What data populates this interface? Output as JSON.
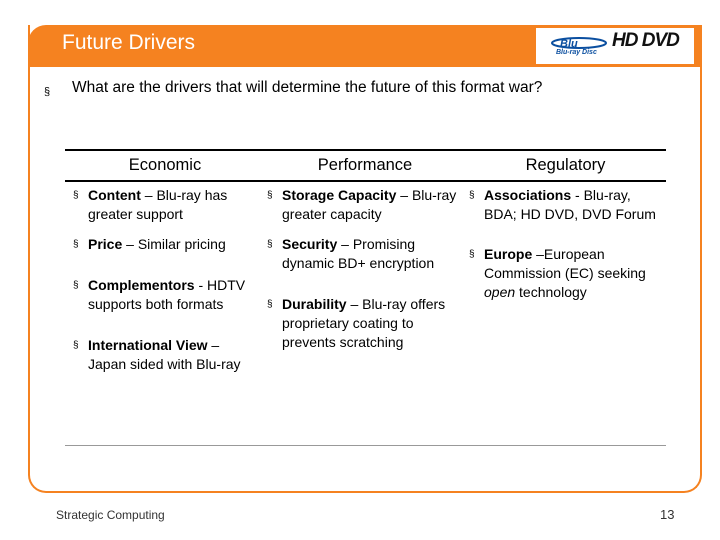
{
  "slide": {
    "title": "Future Drivers",
    "bullet_glyph": "§",
    "question": "What are the drivers that will determine the future of this format war?",
    "logos": {
      "bluray_text": "Blu-ray Disc",
      "hddvd_text": "HD DVD"
    }
  },
  "table": {
    "headers": [
      "Economic",
      "Performance",
      "Regulatory"
    ],
    "economic": [
      {
        "label": "Content",
        "text": " – Blu-ray has greater support"
      },
      {
        "label": "Price",
        "text": " – Similar pricing"
      },
      {
        "label": "Complementors",
        "text": " - HDTV supports both formats"
      },
      {
        "label": "International View",
        "text": " – Japan sided with Blu-ray"
      }
    ],
    "performance": [
      {
        "label": "Storage Capacity",
        "text": " – Blu-ray greater capacity"
      },
      {
        "label": "Security",
        "text": " – Promising dynamic BD+ encryption"
      },
      {
        "label": "Durability",
        "text": " – Blu-ray offers proprietary coating to prevents scratching"
      }
    ],
    "regulatory": [
      {
        "label": "Associations",
        "text": " - Blu-ray, BDA; HD DVD, DVD Forum"
      },
      {
        "label": "Europe",
        "text": " –European Commission (EC) seeking ",
        "em": "open",
        "tail": " technology"
      }
    ]
  },
  "footer": {
    "left": "Strategic Computing",
    "page_number": "13"
  },
  "colors": {
    "accent": "#f58220",
    "logo_blue": "#0b4fa0"
  }
}
